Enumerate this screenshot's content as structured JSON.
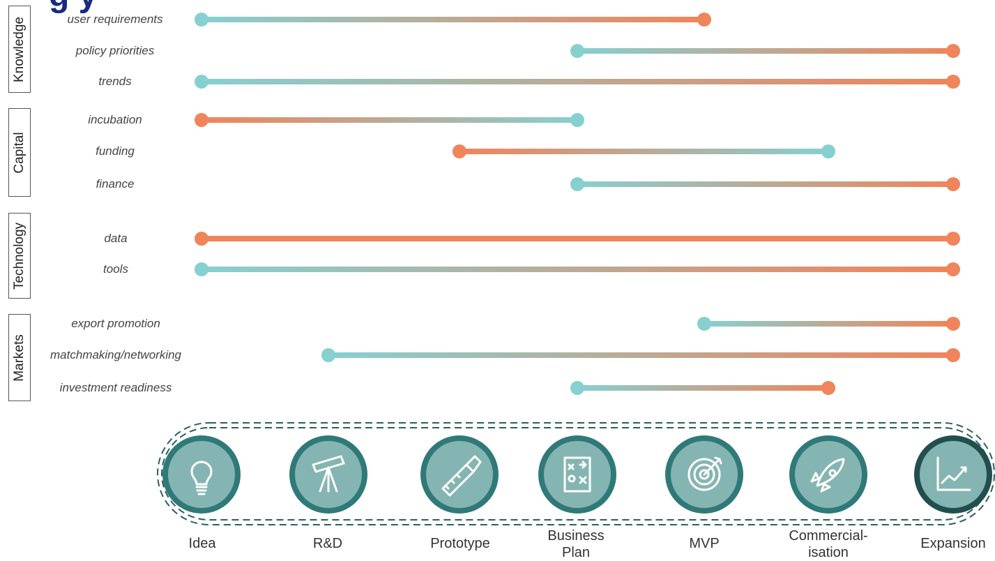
{
  "title_fragment": "g         y",
  "colors": {
    "teal": "#86d0d0",
    "orange": "#f0845a",
    "circle_fill": "#85b5b2",
    "circle_ring": "#2f7a78",
    "circle_ring_dark": "#214f4e",
    "dash": "#2b5f5e"
  },
  "categories": [
    {
      "name": "Knowledge"
    },
    {
      "name": "Capital"
    },
    {
      "name": "Technology"
    },
    {
      "name": "Markets"
    }
  ],
  "stages": [
    "Idea",
    "R&D",
    "Prototype",
    "Business\nPlan",
    "MVP",
    "Commercial-\nisation",
    "Expansion"
  ],
  "stage_icons": [
    "lightbulb-icon",
    "telescope-icon",
    "saw-icon",
    "strategy-board-icon",
    "target-icon",
    "rocket-icon",
    "growth-chart-icon"
  ],
  "rows": [
    {
      "label": "user requirements",
      "category": "Knowledge",
      "start": "Idea",
      "end": "MVP",
      "start_color": "teal",
      "end_color": "orange"
    },
    {
      "label": "policy priorities",
      "category": "Knowledge",
      "start": "Business\nPlan",
      "end": "Expansion",
      "start_color": "teal",
      "end_color": "orange"
    },
    {
      "label": "trends",
      "category": "Knowledge",
      "start": "Idea",
      "end": "Expansion",
      "start_color": "teal",
      "end_color": "orange"
    },
    {
      "label": "incubation",
      "category": "Capital",
      "start": "Idea",
      "end": "Business\nPlan",
      "start_color": "orange",
      "end_color": "teal"
    },
    {
      "label": "funding",
      "category": "Capital",
      "start": "Prototype",
      "end": "Commercial-\nisation",
      "start_color": "orange",
      "end_color": "teal"
    },
    {
      "label": "finance",
      "category": "Capital",
      "start": "Business\nPlan",
      "end": "Expansion",
      "start_color": "teal",
      "end_color": "orange"
    },
    {
      "label": "data",
      "category": "Technology",
      "start": "Idea",
      "end": "Expansion",
      "start_color": "orange",
      "end_color": "orange"
    },
    {
      "label": "tools",
      "category": "Technology",
      "start": "Idea",
      "end": "Expansion",
      "start_color": "teal",
      "end_color": "orange"
    },
    {
      "label": "export promotion",
      "category": "Markets",
      "start": "MVP",
      "end": "Expansion",
      "start_color": "teal",
      "end_color": "orange"
    },
    {
      "label": "matchmaking/networking",
      "category": "Markets",
      "start": "R&D",
      "end": "Expansion",
      "start_color": "teal",
      "end_color": "orange"
    },
    {
      "label": "investment readiness",
      "category": "Markets",
      "start": "Business\nPlan",
      "end": "Commercial-\nisation",
      "start_color": "teal",
      "end_color": "orange"
    }
  ]
}
